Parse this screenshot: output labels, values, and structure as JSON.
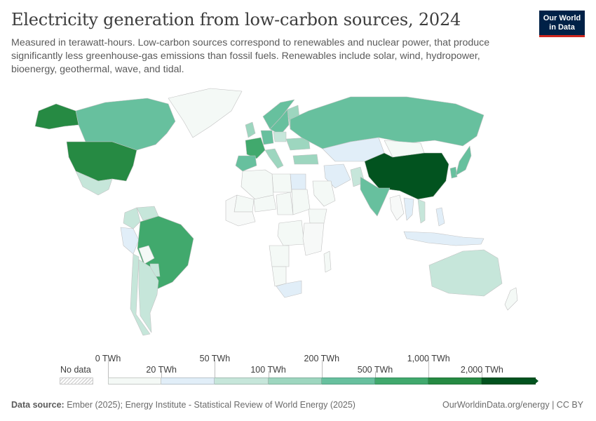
{
  "header": {
    "title": "Electricity generation from low-carbon sources, 2024",
    "subtitle": "Measured in terawatt-hours. Low-carbon sources correspond to renewables and nuclear power, that produce significantly less greenhouse-gas emissions than fossil fuels. Renewables include solar, wind, hydropower, bioenergy, geothermal, wave, and tidal."
  },
  "logo": {
    "line1": "Our World",
    "line2": "in Data"
  },
  "legend": {
    "no_data_label": "No data",
    "top_labels": [
      "0 TWh",
      "50 TWh",
      "200 TWh",
      "1,000 TWh"
    ],
    "bottom_labels": [
      "20 TWh",
      "100 TWh",
      "500 TWh",
      "2,000 TWh"
    ],
    "bins": [
      {
        "range": "0 – 20 TWh",
        "color": "#f4f9f6"
      },
      {
        "range": "20 – 50 TWh",
        "color": "#e1eef8"
      },
      {
        "range": "50 – 100 TWh",
        "color": "#c6e6da"
      },
      {
        "range": "100 – 200 TWh",
        "color": "#9dd6bf"
      },
      {
        "range": "200 – 500 TWh",
        "color": "#67c09e"
      },
      {
        "range": "500 – 1,000 TWh",
        "color": "#41a96d"
      },
      {
        "range": "1,000 – 2,000 TWh",
        "color": "#268a43"
      },
      {
        "range": "2,000+ TWh",
        "color": "#02531f"
      }
    ]
  },
  "map": {
    "regions": [
      {
        "name": "China",
        "bin": 7
      },
      {
        "name": "United States",
        "bin": 6
      },
      {
        "name": "Brazil",
        "bin": 5
      },
      {
        "name": "France",
        "bin": 5
      },
      {
        "name": "Canada",
        "bin": 4
      },
      {
        "name": "Russia",
        "bin": 4
      },
      {
        "name": "India",
        "bin": 4
      },
      {
        "name": "Japan",
        "bin": 4
      },
      {
        "name": "Germany",
        "bin": 4
      },
      {
        "name": "Spain",
        "bin": 4
      },
      {
        "name": "Sweden",
        "bin": 4
      },
      {
        "name": "Norway",
        "bin": 4
      },
      {
        "name": "South Korea",
        "bin": 4
      },
      {
        "name": "United Kingdom",
        "bin": 3
      },
      {
        "name": "Italy",
        "bin": 3
      },
      {
        "name": "Ukraine",
        "bin": 3
      },
      {
        "name": "Finland",
        "bin": 3
      },
      {
        "name": "Turkey",
        "bin": 3
      },
      {
        "name": "Mexico",
        "bin": 2
      },
      {
        "name": "Argentina",
        "bin": 2
      },
      {
        "name": "Chile",
        "bin": 2
      },
      {
        "name": "Colombia",
        "bin": 2
      },
      {
        "name": "Venezuela",
        "bin": 2
      },
      {
        "name": "Paraguay",
        "bin": 2
      },
      {
        "name": "Australia",
        "bin": 2
      },
      {
        "name": "Vietnam",
        "bin": 2
      },
      {
        "name": "Poland",
        "bin": 2
      },
      {
        "name": "Pakistan",
        "bin": 2
      },
      {
        "name": "Peru",
        "bin": 1
      },
      {
        "name": "Iran",
        "bin": 1
      },
      {
        "name": "South Africa",
        "bin": 1
      },
      {
        "name": "Egypt",
        "bin": 1
      },
      {
        "name": "Indonesia",
        "bin": 1
      },
      {
        "name": "Thailand",
        "bin": 1
      },
      {
        "name": "Philippines",
        "bin": 1
      },
      {
        "name": "Kazakhstan",
        "bin": 1
      },
      {
        "name": "Bolivia",
        "bin": 0
      },
      {
        "name": "Algeria",
        "bin": 0
      },
      {
        "name": "Libya",
        "bin": 0
      },
      {
        "name": "Mali",
        "bin": 0
      },
      {
        "name": "Niger",
        "bin": 0
      },
      {
        "name": "Chad",
        "bin": 0
      },
      {
        "name": "Sudan",
        "bin": 0
      },
      {
        "name": "Ethiopia",
        "bin": 0
      },
      {
        "name": "DR Congo",
        "bin": 0
      },
      {
        "name": "Angola",
        "bin": 0
      },
      {
        "name": "Namibia",
        "bin": 0
      },
      {
        "name": "Madagascar",
        "bin": 0
      },
      {
        "name": "Saudi Arabia",
        "bin": 0
      },
      {
        "name": "Mongolia",
        "bin": 0
      },
      {
        "name": "New Zealand",
        "bin": 0
      },
      {
        "name": "Greenland",
        "bin": 0
      }
    ]
  },
  "footer": {
    "source_label": "Data source:",
    "source_text": " Ember (2025); Energy Institute - Statistical Review of World Energy (2025)",
    "right_text": "OurWorldinData.org/energy | CC BY"
  }
}
